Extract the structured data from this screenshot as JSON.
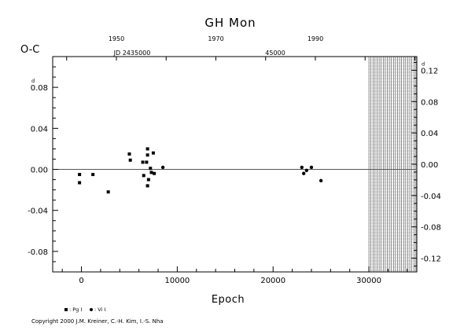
{
  "chart_data": {
    "type": "scatter",
    "title": "GH Mon",
    "ylabel": "O-C",
    "y_unit_mark": "d",
    "xlabel": "Epoch",
    "xlim": [
      -3000,
      35000
    ],
    "ylim": [
      -0.1,
      0.11
    ],
    "x_ticks": [
      "0",
      "10000",
      "20000",
      "30000"
    ],
    "y_ticks_left": [
      "0.08",
      "0.04",
      "0.00",
      "-0.04",
      "-0.08"
    ],
    "y_ticks_right": [
      "0.12",
      "0.08",
      "0.04",
      "0.00",
      "-0.04",
      "-0.08",
      "-0.12"
    ],
    "top_year_labels": [
      "1950",
      "1970",
      "1990"
    ],
    "jd_labels": [
      "JD 2435000",
      "45000"
    ],
    "grid": false,
    "zero_line": true,
    "hatched_region_x": [
      30000,
      35000
    ],
    "legend_placement": "bottom-left",
    "series": [
      {
        "name": ": Pg I",
        "marker": "square",
        "points": [
          [
            -200,
            -0.005
          ],
          [
            -200,
            -0.013
          ],
          [
            1200,
            -0.005
          ],
          [
            2800,
            -0.022
          ],
          [
            5000,
            0.015
          ],
          [
            5100,
            0.009
          ],
          [
            6400,
            0.007
          ],
          [
            6500,
            -0.006
          ],
          [
            6800,
            0.007
          ],
          [
            6900,
            0.02
          ],
          [
            6900,
            0.014
          ],
          [
            6900,
            -0.016
          ],
          [
            7000,
            -0.01
          ],
          [
            7200,
            0.001
          ],
          [
            7300,
            -0.003
          ],
          [
            7500,
            0.016
          ],
          [
            7600,
            -0.004
          ]
        ]
      },
      {
        "name": ": Vi I",
        "marker": "circle",
        "points": [
          [
            8500,
            0.002
          ],
          [
            23000,
            0.002
          ],
          [
            23200,
            -0.004
          ],
          [
            23500,
            -0.001
          ],
          [
            24000,
            0.002
          ],
          [
            25000,
            -0.011
          ]
        ]
      }
    ]
  },
  "copyright": "Copyright 2000 J.M. Kreiner, C.-H. Kim, I.-S. Nha"
}
